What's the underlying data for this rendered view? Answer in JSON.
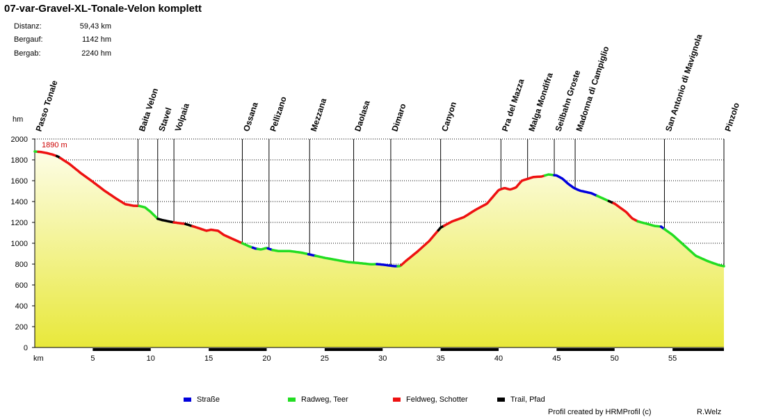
{
  "title": "07-var-Gravel-XL-Tonale-Velon komplett",
  "stats": [
    {
      "label": "Distanz:",
      "value": "59,43 km"
    },
    {
      "label": "Bergauf:",
      "value": "1142 hm"
    },
    {
      "label": "Bergab:",
      "value": "2240 hm"
    }
  ],
  "legend": [
    {
      "label": "Straße",
      "color": "#0000dd"
    },
    {
      "label": "Radweg, Teer",
      "color": "#22dd22"
    },
    {
      "label": "Feldweg, Schotter",
      "color": "#ee1111"
    },
    {
      "label": "Trail, Pfad",
      "color": "#000000"
    }
  ],
  "footer": {
    "credit": "Profil created by HRMProfil (c)",
    "author": "R.Welz"
  },
  "chart_data": {
    "type": "area",
    "xlabel": "km",
    "ylabel": "hm",
    "xlim": [
      0,
      59.43
    ],
    "ylim": [
      0,
      2000
    ],
    "xticks": [
      5,
      10,
      15,
      20,
      25,
      30,
      35,
      40,
      45,
      50,
      55
    ],
    "yticks": [
      0,
      200,
      400,
      600,
      800,
      1000,
      1200,
      1400,
      1600,
      1800,
      2000
    ],
    "grid": true,
    "max_label": "1890 m",
    "profile": [
      [
        0,
        1880
      ],
      [
        0.5,
        1876
      ],
      [
        1,
        1866
      ],
      [
        1.5,
        1852
      ],
      [
        2,
        1832
      ],
      [
        3,
        1760
      ],
      [
        4,
        1670
      ],
      [
        5,
        1590
      ],
      [
        6,
        1505
      ],
      [
        7,
        1430
      ],
      [
        7.8,
        1375
      ],
      [
        8.5,
        1360
      ],
      [
        9,
        1358
      ],
      [
        9.5,
        1345
      ],
      [
        10,
        1300
      ],
      [
        10.6,
        1235
      ],
      [
        11,
        1222
      ],
      [
        12,
        1200
      ],
      [
        13,
        1185
      ],
      [
        14,
        1150
      ],
      [
        14.8,
        1120
      ],
      [
        15.2,
        1130
      ],
      [
        15.8,
        1120
      ],
      [
        16.3,
        1080
      ],
      [
        17,
        1045
      ],
      [
        17.8,
        1005
      ],
      [
        18.5,
        970
      ],
      [
        19,
        950
      ],
      [
        19.5,
        940
      ],
      [
        20,
        955
      ],
      [
        20.5,
        935
      ],
      [
        21,
        925
      ],
      [
        22,
        925
      ],
      [
        23,
        910
      ],
      [
        24,
        885
      ],
      [
        25,
        860
      ],
      [
        26,
        840
      ],
      [
        27,
        820
      ],
      [
        28,
        810
      ],
      [
        29,
        798
      ],
      [
        29.5,
        800
      ],
      [
        30,
        795
      ],
      [
        31,
        780
      ],
      [
        31.5,
        780
      ],
      [
        32,
        830
      ],
      [
        33,
        920
      ],
      [
        34,
        1020
      ],
      [
        35,
        1150
      ],
      [
        36,
        1210
      ],
      [
        37,
        1250
      ],
      [
        38,
        1320
      ],
      [
        39,
        1380
      ],
      [
        40,
        1510
      ],
      [
        40.5,
        1530
      ],
      [
        41,
        1515
      ],
      [
        41.5,
        1535
      ],
      [
        42,
        1600
      ],
      [
        43,
        1635
      ],
      [
        43.7,
        1640
      ],
      [
        44.3,
        1660
      ],
      [
        45,
        1650
      ],
      [
        45.5,
        1620
      ],
      [
        46,
        1570
      ],
      [
        46.5,
        1530
      ],
      [
        47,
        1505
      ],
      [
        48,
        1480
      ],
      [
        49,
        1430
      ],
      [
        50,
        1380
      ],
      [
        51,
        1300
      ],
      [
        51.5,
        1240
      ],
      [
        52,
        1210
      ],
      [
        53,
        1180
      ],
      [
        53.5,
        1165
      ],
      [
        54,
        1160
      ],
      [
        55,
        1080
      ],
      [
        56,
        980
      ],
      [
        57,
        880
      ],
      [
        58,
        830
      ],
      [
        59,
        790
      ],
      [
        59.43,
        780
      ]
    ],
    "surface_segments": [
      {
        "type": "Radweg, Teer",
        "from": 0,
        "to": 0.3
      },
      {
        "type": "Feldweg, Schotter",
        "from": 0.3,
        "to": 1.9
      },
      {
        "type": "Trail, Pfad",
        "from": 1.9,
        "to": 2.2
      },
      {
        "type": "Feldweg, Schotter",
        "from": 2.2,
        "to": 9
      },
      {
        "type": "Radweg, Teer",
        "from": 9,
        "to": 10.6
      },
      {
        "type": "Trail, Pfad",
        "from": 10.6,
        "to": 12
      },
      {
        "type": "Feldweg, Schotter",
        "from": 12,
        "to": 13
      },
      {
        "type": "Trail, Pfad",
        "from": 13,
        "to": 13.6
      },
      {
        "type": "Feldweg, Schotter",
        "from": 13.6,
        "to": 17.9
      },
      {
        "type": "Radweg, Teer",
        "from": 17.9,
        "to": 18.8
      },
      {
        "type": "Straße",
        "from": 18.8,
        "to": 19.2
      },
      {
        "type": "Radweg, Teer",
        "from": 19.2,
        "to": 20.1
      },
      {
        "type": "Straße",
        "from": 20.1,
        "to": 20.5
      },
      {
        "type": "Radweg, Teer",
        "from": 20.5,
        "to": 23.6
      },
      {
        "type": "Straße",
        "from": 23.6,
        "to": 24.2
      },
      {
        "type": "Radweg, Teer",
        "from": 24.2,
        "to": 29.5
      },
      {
        "type": "Straße",
        "from": 29.5,
        "to": 31.3
      },
      {
        "type": "Radweg, Teer",
        "from": 31.3,
        "to": 31.6
      },
      {
        "type": "Feldweg, Schotter",
        "from": 31.6,
        "to": 34.8
      },
      {
        "type": "Trail, Pfad",
        "from": 34.8,
        "to": 35.3
      },
      {
        "type": "Feldweg, Schotter",
        "from": 35.3,
        "to": 44
      },
      {
        "type": "Radweg, Teer",
        "from": 44,
        "to": 44.8
      },
      {
        "type": "Straße",
        "from": 44.8,
        "to": 48.5
      },
      {
        "type": "Radweg, Teer",
        "from": 48.5,
        "to": 49.5
      },
      {
        "type": "Trail, Pfad",
        "from": 49.5,
        "to": 49.9
      },
      {
        "type": "Feldweg, Schotter",
        "from": 49.9,
        "to": 52
      },
      {
        "type": "Radweg, Teer",
        "from": 52,
        "to": 54
      },
      {
        "type": "Straße",
        "from": 54,
        "to": 54.3
      },
      {
        "type": "Radweg, Teer",
        "from": 54.3,
        "to": 59.43
      }
    ],
    "waypoints": [
      {
        "name": "Passo Tonale",
        "km": 0
      },
      {
        "name": "Baita Velon",
        "km": 8.9
      },
      {
        "name": "Stavel",
        "km": 10.6
      },
      {
        "name": "Volpaia",
        "km": 12
      },
      {
        "name": "Ossana",
        "km": 17.9
      },
      {
        "name": "Pellizano",
        "km": 20.2
      },
      {
        "name": "Mezzana",
        "km": 23.7
      },
      {
        "name": "Daolasa",
        "km": 27.5
      },
      {
        "name": "Dimaro",
        "km": 30.7
      },
      {
        "name": "Canyon",
        "km": 35
      },
      {
        "name": "Pra del Mazza",
        "km": 40.2
      },
      {
        "name": "Malga Mondifra",
        "km": 42.5
      },
      {
        "name": "Seilbahn Groste",
        "km": 44.8
      },
      {
        "name": "Madonna di Campiglio",
        "km": 46.6
      },
      {
        "name": "San Antonio di Mavignola",
        "km": 54.3
      },
      {
        "name": "Pinzolo",
        "km": 59.43
      }
    ]
  }
}
